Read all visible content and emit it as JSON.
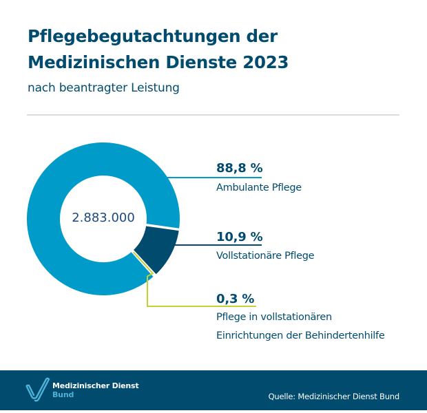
{
  "chart_data": {
    "type": "pie",
    "variant": "donut",
    "title": "Pflegebegutachtungen der Medizinischen Dienste 2023",
    "title_lines": [
      "Pflegebegutachtungen der",
      "Medizinischen Dienste 2023"
    ],
    "subtitle": "nach beantragter Leistung",
    "center_label": "2.883.000",
    "slices": [
      {
        "label": "Vollstationäre Pflege",
        "label_lines": [
          "Vollstationäre Pflege"
        ],
        "value": 10.9,
        "value_label": "10,9 %",
        "color": "#004b6e"
      },
      {
        "label": "Pflege in vollstationären Einrichtungen der Behindertenhilfe",
        "label_lines": [
          "Pflege in vollstationären",
          "Einrichtungen der Behindertenhilfe"
        ],
        "value": 0.3,
        "value_label": "0,3 %",
        "color": "#c3d232"
      },
      {
        "label": "Ambulante Pflege",
        "label_lines": [
          "Ambulante Pflege"
        ],
        "value": 88.8,
        "value_label": "88,8 %",
        "color": "#009bc8"
      }
    ],
    "start_angle_deg": 8,
    "legend": "right"
  },
  "footer": {
    "logo_line1": "Medizinischer Dienst",
    "logo_line2": "Bund",
    "source": "Quelle: Medizinischer Dienst Bund",
    "background": "#004b6e"
  }
}
